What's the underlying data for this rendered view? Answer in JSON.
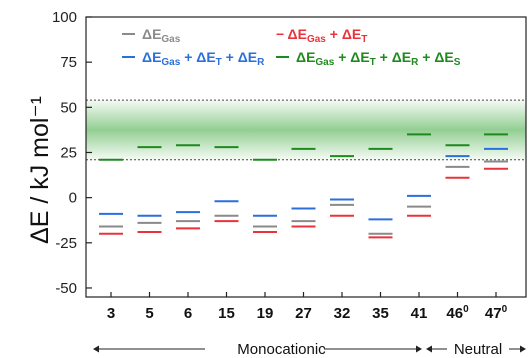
{
  "chart_data": {
    "type": "scatter",
    "ylabel": "ΔE / kJ mol⁻¹",
    "ylim": [
      -55,
      100
    ],
    "yticks": [
      -50,
      -25,
      0,
      25,
      50,
      75,
      100
    ],
    "categories": [
      {
        "label": "3",
        "sup": ""
      },
      {
        "label": "5",
        "sup": ""
      },
      {
        "label": "6",
        "sup": ""
      },
      {
        "label": "15",
        "sup": ""
      },
      {
        "label": "19",
        "sup": ""
      },
      {
        "label": "27",
        "sup": ""
      },
      {
        "label": "32",
        "sup": ""
      },
      {
        "label": "35",
        "sup": ""
      },
      {
        "label": "41",
        "sup": ""
      },
      {
        "label": "46",
        "sup": "0"
      },
      {
        "label": "47",
        "sup": "0"
      }
    ],
    "band": {
      "low": 21,
      "high": 54,
      "color": "#3aa63a"
    },
    "series": [
      {
        "key": "gas",
        "color": "#8a8a8a",
        "legend": [
          {
            "t": "ΔE",
            "s": ""
          },
          {
            "t": "Gas",
            "s": "sub"
          }
        ],
        "values": [
          -16,
          -14,
          -13,
          -10,
          -16,
          -13,
          -4,
          -20,
          -5,
          17,
          20
        ]
      },
      {
        "key": "gas_t",
        "color": "#e8333a",
        "legend": [
          {
            "t": "− ",
            "s": ""
          },
          {
            "t": "ΔE",
            "s": ""
          },
          {
            "t": "Gas",
            "s": "sub"
          },
          {
            "t": " + ΔE",
            "s": ""
          },
          {
            "t": "T",
            "s": "sub"
          }
        ],
        "values": [
          -20,
          -19,
          -17,
          -13,
          -19,
          -16,
          -10,
          -22,
          -10,
          11,
          16
        ]
      },
      {
        "key": "gas_t_r",
        "color": "#2a6fdb",
        "legend": [
          {
            "t": "ΔE",
            "s": ""
          },
          {
            "t": "Gas",
            "s": "sub"
          },
          {
            "t": " + ΔE",
            "s": ""
          },
          {
            "t": "T",
            "s": "sub"
          },
          {
            "t": " + ΔE",
            "s": ""
          },
          {
            "t": "R",
            "s": "sub"
          }
        ],
        "values": [
          -9,
          -10,
          -8,
          -2,
          -10,
          -6,
          -1,
          -12,
          1,
          23,
          27
        ]
      },
      {
        "key": "gas_t_r_s",
        "color": "#1e8a1e",
        "legend": [
          {
            "t": "ΔE",
            "s": ""
          },
          {
            "t": "Gas",
            "s": "sub"
          },
          {
            "t": " + ΔE",
            "s": ""
          },
          {
            "t": "T",
            "s": "sub"
          },
          {
            "t": " + ΔE",
            "s": ""
          },
          {
            "t": "R",
            "s": "sub"
          },
          {
            "t": " + ΔE",
            "s": ""
          },
          {
            "t": "S",
            "s": "sub"
          }
        ],
        "values": [
          21,
          28,
          29,
          28,
          21,
          27,
          23,
          27,
          35,
          29,
          35
        ]
      }
    ],
    "groups": [
      {
        "label": "Monocationic",
        "from": 0,
        "to": 8
      },
      {
        "label": "Neutral",
        "from": 9,
        "to": 10
      }
    ],
    "grid": false
  }
}
